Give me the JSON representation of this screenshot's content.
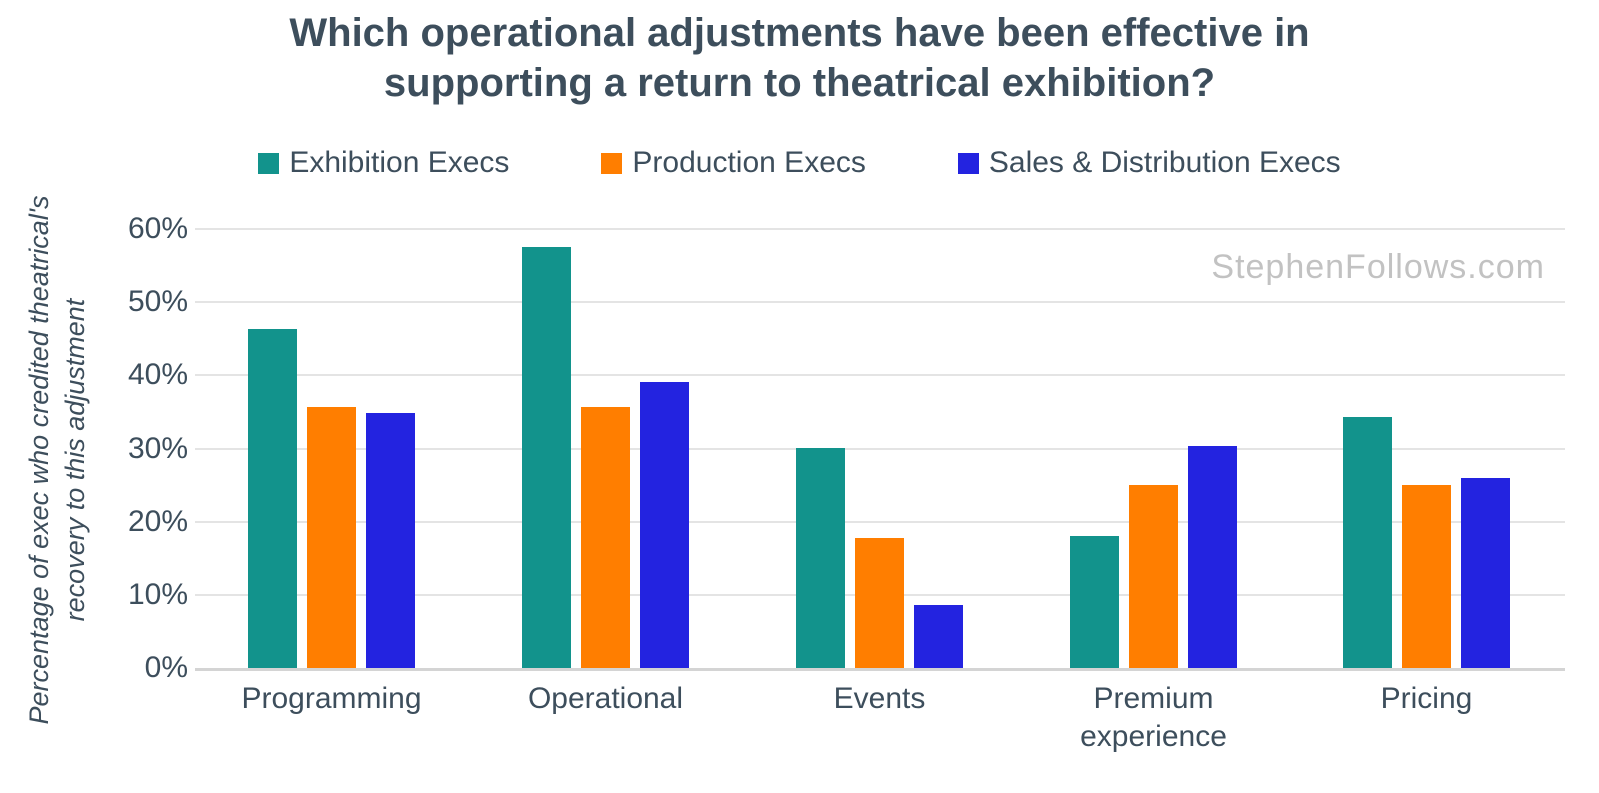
{
  "title": {
    "line1": "Which operational adjustments have been effective in",
    "line2": "supporting a return to theatrical exhibition?"
  },
  "y_axis_title": {
    "line1": "Percentage of exec who credited theatrical's",
    "line2": "recovery to this adjustment"
  },
  "watermark": "StephenFollows.com",
  "chart_data": {
    "type": "bar",
    "title": "Which operational adjustments have been effective in supporting a return to theatrical exhibition?",
    "xlabel": "",
    "ylabel": "Percentage of exec who credited theatrical's recovery to this adjustment",
    "categories": [
      "Programming",
      "Operational",
      "Events",
      "Premium experience",
      "Pricing"
    ],
    "series": [
      {
        "name": "Exhibition Execs",
        "color": "#12938c",
        "values": [
          46.4,
          57.6,
          30.1,
          18.0,
          34.3
        ]
      },
      {
        "name": "Production Execs",
        "color": "#ff7e00",
        "values": [
          35.7,
          35.7,
          17.8,
          25.0,
          25.0
        ]
      },
      {
        "name": "Sales & Distribution Execs",
        "color": "#2323e0",
        "values": [
          34.8,
          39.1,
          8.6,
          30.3,
          26.0
        ]
      }
    ],
    "yticks": [
      "0%",
      "10%",
      "20%",
      "30%",
      "40%",
      "50%",
      "60%"
    ],
    "ytick_values": [
      0,
      10,
      20,
      30,
      40,
      50,
      60
    ],
    "ylim": [
      0,
      60
    ],
    "grid": true,
    "legend_position": "top"
  },
  "colors": {
    "title_text": "#3d4e5c",
    "axis_text": "#3d4e5c",
    "gridline": "#e4e4e4",
    "axis_line": "#d4d4d4",
    "watermark": "#c2c2c2",
    "background": "#ffffff"
  }
}
